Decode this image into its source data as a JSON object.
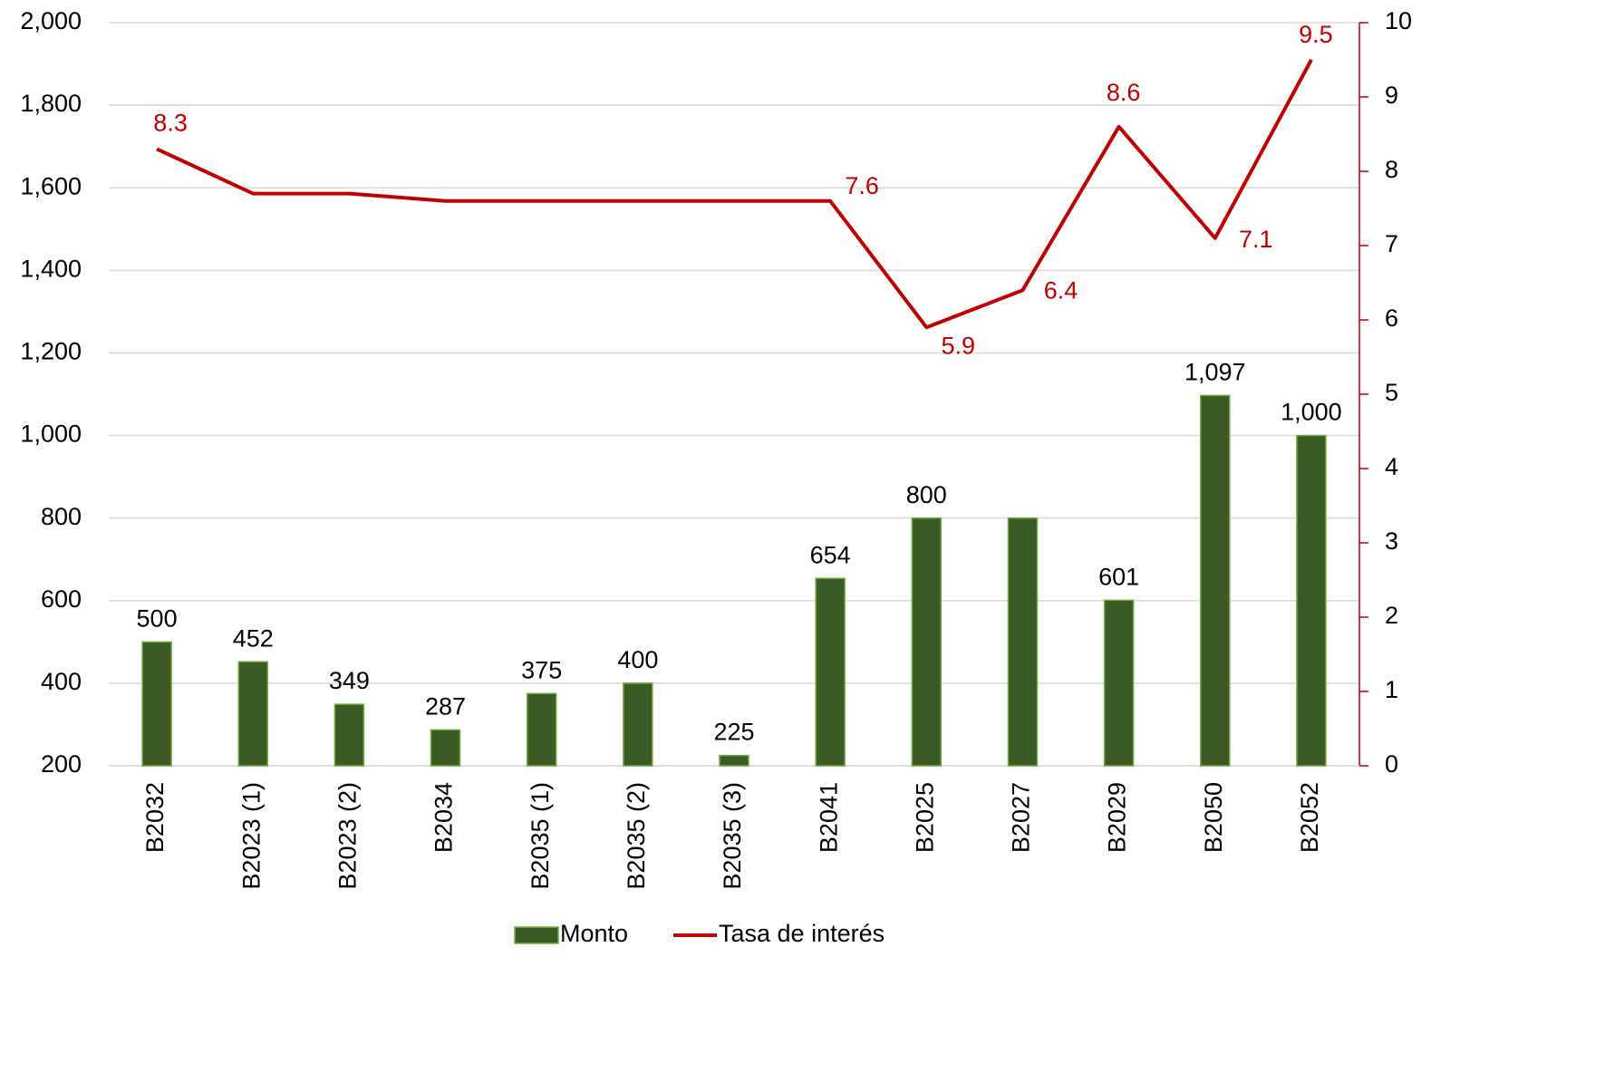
{
  "chart_data": {
    "type": "bar-line",
    "categories": [
      "B2032",
      "B2023 (1)",
      "B2023 (2)",
      "B2034",
      "B2035 (1)",
      "B2035 (2)",
      "B2035 (3)",
      "B2041",
      "B2025",
      "B2027",
      "B2029",
      "B2050",
      "B2052"
    ],
    "series": [
      {
        "name": "Monto",
        "type": "bar",
        "color": "#3b5a26",
        "axis": "y",
        "values": [
          500,
          452,
          349,
          287,
          375,
          400,
          225,
          654,
          800,
          800,
          601,
          1097,
          1000
        ],
        "value_labels": [
          "500",
          "452",
          "349",
          "287",
          "375",
          "400",
          "225",
          "654",
          "800",
          null,
          "601",
          "1,097",
          "1,000"
        ]
      },
      {
        "name": "Tasa de interés",
        "type": "line",
        "color": "#c00000",
        "axis": "y2",
        "values": [
          8.3,
          7.7,
          7.7,
          7.6,
          7.6,
          7.6,
          7.6,
          7.6,
          5.9,
          6.4,
          8.6,
          7.1,
          9.5
        ],
        "value_labels": [
          "8.3",
          null,
          null,
          null,
          null,
          null,
          null,
          "7.6",
          "5.9",
          "6.4",
          "8.6",
          "7.1",
          "9.5"
        ]
      }
    ],
    "ylim": [
      200,
      2000
    ],
    "yticks": [
      200,
      400,
      600,
      800,
      {
        "value": 1000,
        "label": "1,000"
      },
      {
        "value": 1200,
        "label": "1,200"
      },
      {
        "value": 1400,
        "label": "1,400"
      },
      {
        "value": 1600,
        "label": "1,600"
      },
      {
        "value": 1800,
        "label": "1,800"
      },
      {
        "value": 2000,
        "label": "2,000"
      }
    ],
    "y2lim": [
      0,
      10
    ],
    "y2ticks": [
      0,
      1,
      2,
      3,
      4,
      5,
      6,
      7,
      8,
      9,
      10
    ],
    "grid": true,
    "legend": "bottom"
  }
}
